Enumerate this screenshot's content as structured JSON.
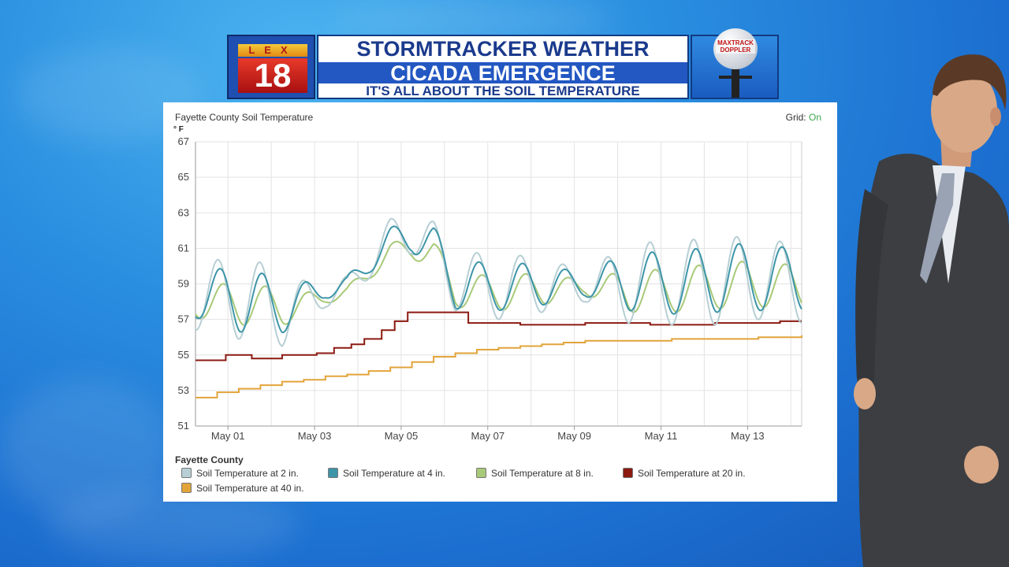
{
  "banner": {
    "logo_top": "LEX",
    "logo_number": "18",
    "title_line1": "STORMTRACKER WEATHER",
    "title_line2": "CICADA EMERGENCE",
    "title_line3": "IT'S ALL ABOUT THE SOIL TEMPERATURE",
    "doppler_text": "MAXTRACK DOPPLER"
  },
  "colors": {
    "s2": "#b7cfd4",
    "s4": "#3d95a8",
    "s8": "#a8c978",
    "s20": "#8b1a10",
    "s40": "#e2a43a",
    "grid_on": "#3aa64a"
  },
  "chart_data": {
    "type": "line",
    "title": "Fayette County Soil Temperature",
    "grid_label": "Grid:",
    "grid_state": "On",
    "grid": true,
    "ylabel": "° F",
    "ylim": [
      51,
      67
    ],
    "yticks": [
      "67",
      "65",
      "63",
      "61",
      "59",
      "57",
      "55",
      "53",
      "51"
    ],
    "xlim": [
      0,
      14
    ],
    "xticks": [
      {
        "x": 0.75,
        "label": "May 01"
      },
      {
        "x": 2.75,
        "label": "May 03"
      },
      {
        "x": 4.75,
        "label": "May 05"
      },
      {
        "x": 6.75,
        "label": "May 07"
      },
      {
        "x": 8.75,
        "label": "May 09"
      },
      {
        "x": 10.75,
        "label": "May 11"
      },
      {
        "x": 12.75,
        "label": "May 13"
      }
    ],
    "legend_title": "Fayette County",
    "legend_placement": "bottom",
    "series": [
      {
        "name": "Soil Temperature at 2 in.",
        "color_key": "s2",
        "kind": "wave",
        "base": [
          [
            0,
            58.0
          ],
          [
            1,
            58.5
          ],
          [
            2,
            57.4
          ],
          [
            3,
            58.4
          ],
          [
            3.5,
            58.6
          ],
          [
            4,
            60.3
          ],
          [
            4.5,
            61.5
          ],
          [
            5,
            62.0
          ],
          [
            5.5,
            61.0
          ],
          [
            6,
            59.2
          ],
          [
            7,
            58.8
          ],
          [
            8,
            59.0
          ],
          [
            9,
            58.8
          ],
          [
            10,
            59.1
          ],
          [
            11,
            59.0
          ],
          [
            12,
            59.2
          ],
          [
            13,
            59.3
          ],
          [
            14,
            59.0
          ]
        ],
        "amp": [
          [
            0,
            1.6
          ],
          [
            1,
            2.6
          ],
          [
            2,
            1.9
          ],
          [
            3,
            0.7
          ],
          [
            4,
            1.0
          ],
          [
            5,
            1.3
          ],
          [
            6,
            1.7
          ],
          [
            7,
            1.8
          ],
          [
            8,
            1.6
          ],
          [
            9,
            0.8
          ],
          [
            10,
            2.3
          ],
          [
            11,
            2.3
          ],
          [
            12,
            2.5
          ],
          [
            13,
            2.3
          ],
          [
            14,
            2.2
          ]
        ],
        "phase": 0.5
      },
      {
        "name": "Soil Temperature at 4 in.",
        "color_key": "s4",
        "kind": "wave",
        "base": [
          [
            0,
            58.2
          ],
          [
            1,
            58.3
          ],
          [
            2,
            57.6
          ],
          [
            3,
            58.7
          ],
          [
            3.5,
            58.8
          ],
          [
            4,
            60.3
          ],
          [
            4.5,
            61.3
          ],
          [
            5,
            61.8
          ],
          [
            5.5,
            61.0
          ],
          [
            6,
            59.0
          ],
          [
            7,
            58.8
          ],
          [
            8,
            59.0
          ],
          [
            9,
            58.9
          ],
          [
            10,
            59.2
          ],
          [
            11,
            59.0
          ],
          [
            12,
            59.3
          ],
          [
            13,
            59.4
          ],
          [
            14,
            59.2
          ]
        ],
        "amp": [
          [
            0,
            1.1
          ],
          [
            1,
            2.0
          ],
          [
            2,
            1.4
          ],
          [
            3,
            0.5
          ],
          [
            4,
            0.7
          ],
          [
            5,
            1.0
          ],
          [
            6,
            1.4
          ],
          [
            7,
            1.3
          ],
          [
            8,
            1.2
          ],
          [
            9,
            0.6
          ],
          [
            10,
            1.7
          ],
          [
            11,
            1.7
          ],
          [
            12,
            1.9
          ],
          [
            13,
            1.9
          ],
          [
            14,
            1.7
          ]
        ],
        "phase": 0.55
      },
      {
        "name": "Soil Temperature at 8 in.",
        "color_key": "s8",
        "kind": "wave",
        "base": [
          [
            0,
            57.8
          ],
          [
            1,
            58.0
          ],
          [
            2,
            57.6
          ],
          [
            3,
            58.2
          ],
          [
            3.5,
            58.5
          ],
          [
            4,
            59.6
          ],
          [
            4.5,
            60.8
          ],
          [
            5,
            61.0
          ],
          [
            5.5,
            60.7
          ],
          [
            6,
            58.6
          ],
          [
            7,
            58.5
          ],
          [
            8,
            58.7
          ],
          [
            9,
            58.8
          ],
          [
            10,
            58.6
          ],
          [
            11,
            58.6
          ],
          [
            12,
            58.9
          ],
          [
            13,
            59.0
          ],
          [
            14,
            58.8
          ]
        ],
        "amp": [
          [
            0,
            0.7
          ],
          [
            1,
            1.3
          ],
          [
            2,
            1.0
          ],
          [
            3,
            0.3
          ],
          [
            4,
            0.4
          ],
          [
            5,
            0.6
          ],
          [
            6,
            0.9
          ],
          [
            7,
            1.0
          ],
          [
            8,
            0.9
          ],
          [
            9,
            0.4
          ],
          [
            10,
            1.2
          ],
          [
            11,
            1.2
          ],
          [
            12,
            1.3
          ],
          [
            13,
            1.3
          ],
          [
            14,
            1.2
          ]
        ],
        "phase": 0.62
      },
      {
        "name": "Soil Temperature at 20 in.",
        "color_key": "s20",
        "kind": "step",
        "points": [
          [
            0,
            54.7
          ],
          [
            0.7,
            55.0
          ],
          [
            1.3,
            54.8
          ],
          [
            2,
            55.0
          ],
          [
            2.8,
            55.1
          ],
          [
            3.2,
            55.4
          ],
          [
            3.6,
            55.6
          ],
          [
            3.9,
            55.9
          ],
          [
            4.3,
            56.4
          ],
          [
            4.6,
            56.9
          ],
          [
            4.9,
            57.4
          ],
          [
            5.5,
            57.4
          ],
          [
            6.3,
            56.8
          ],
          [
            7.5,
            56.7
          ],
          [
            9,
            56.8
          ],
          [
            10.5,
            56.7
          ],
          [
            12,
            56.8
          ],
          [
            13.5,
            56.9
          ],
          [
            14,
            56.9
          ]
        ]
      },
      {
        "name": "Soil Temperature at 40 in.",
        "color_key": "s40",
        "kind": "step",
        "points": [
          [
            0,
            52.6
          ],
          [
            0.5,
            52.9
          ],
          [
            1,
            53.1
          ],
          [
            1.5,
            53.3
          ],
          [
            2,
            53.5
          ],
          [
            2.5,
            53.6
          ],
          [
            3,
            53.8
          ],
          [
            3.5,
            53.9
          ],
          [
            4,
            54.1
          ],
          [
            4.5,
            54.3
          ],
          [
            5,
            54.6
          ],
          [
            5.5,
            54.9
          ],
          [
            6,
            55.1
          ],
          [
            6.5,
            55.3
          ],
          [
            7,
            55.4
          ],
          [
            7.5,
            55.5
          ],
          [
            8,
            55.6
          ],
          [
            8.5,
            55.7
          ],
          [
            9,
            55.8
          ],
          [
            10,
            55.8
          ],
          [
            11,
            55.9
          ],
          [
            12,
            55.9
          ],
          [
            13,
            56.0
          ],
          [
            14,
            56.1
          ]
        ]
      }
    ]
  }
}
